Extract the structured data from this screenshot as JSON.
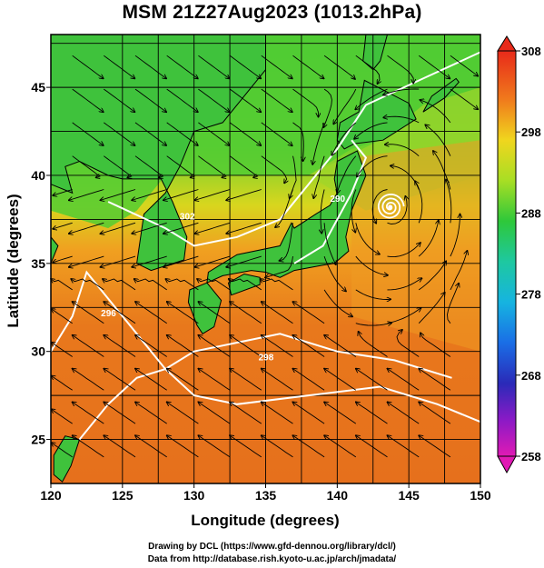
{
  "title": "MSM 21Z27Aug2023 (1013.2hPa)",
  "map": {
    "lon_range": [
      120,
      150
    ],
    "lat_range": [
      22.5,
      48
    ],
    "x_ticks": [
      "120",
      "125",
      "130",
      "135",
      "140",
      "145",
      "150"
    ],
    "y_ticks": [
      "25",
      "30",
      "35",
      "40",
      "45"
    ],
    "xlabel": "Longitude (degrees)",
    "ylabel": "Latitude  (degrees)",
    "contour_labels": [
      "296",
      "298",
      "302",
      "290"
    ],
    "low_center_lon_lat": [
      143.7,
      38.2
    ]
  },
  "colorbar": {
    "labels": [
      "308",
      "298",
      "288",
      "278",
      "268",
      "258"
    ],
    "range": [
      258,
      308
    ]
  },
  "credits": {
    "line1": "Drawing by DCL (https://www.gfd-dennou.org/library/dcl/)",
    "line2": "Data from http://database.rish.kyoto-u.ac.jp/arch/jmadata/"
  },
  "colors": {
    "ocean_warm": "#e8741e",
    "land_green": "#46c832",
    "contour": "#ffffff",
    "streamline": "#000000"
  }
}
